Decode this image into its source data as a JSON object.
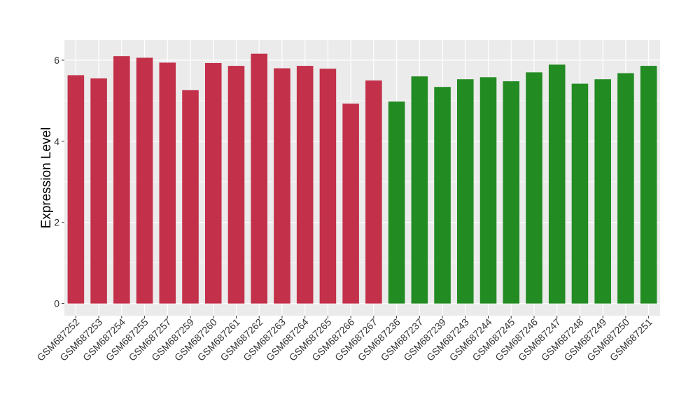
{
  "chart_data": {
    "type": "bar",
    "title": "",
    "xlabel": "",
    "ylabel": "Expression Level",
    "ylim": [
      -0.3,
      6.5
    ],
    "yticks": [
      0,
      2,
      4,
      6
    ],
    "grid": true,
    "colors": {
      "group_a": "#c3304a",
      "group_b": "#228b22",
      "panel": "#ebebeb",
      "gridline": "#ffffff"
    },
    "categories": [
      "GSM687252",
      "GSM687253",
      "GSM687254",
      "GSM687255",
      "GSM687257",
      "GSM687259",
      "GSM687260",
      "GSM687261",
      "GSM687262",
      "GSM687263",
      "GSM687264",
      "GSM687265",
      "GSM687266",
      "GSM687267",
      "GSM687236",
      "GSM687237",
      "GSM687239",
      "GSM687243",
      "GSM687244",
      "GSM687245",
      "GSM687246",
      "GSM687247",
      "GSM687248",
      "GSM687249",
      "GSM687250",
      "GSM687251"
    ],
    "values": [
      5.63,
      5.55,
      6.1,
      6.06,
      5.94,
      5.26,
      5.93,
      5.86,
      6.16,
      5.8,
      5.86,
      5.79,
      4.93,
      5.5,
      4.98,
      5.6,
      5.34,
      5.53,
      5.58,
      5.48,
      5.7,
      5.89,
      5.42,
      5.53,
      5.68,
      5.86
    ],
    "groups": [
      "group_a",
      "group_a",
      "group_a",
      "group_a",
      "group_a",
      "group_a",
      "group_a",
      "group_a",
      "group_a",
      "group_a",
      "group_a",
      "group_a",
      "group_a",
      "group_a",
      "group_b",
      "group_b",
      "group_b",
      "group_b",
      "group_b",
      "group_b",
      "group_b",
      "group_b",
      "group_b",
      "group_b",
      "group_b",
      "group_b"
    ]
  }
}
